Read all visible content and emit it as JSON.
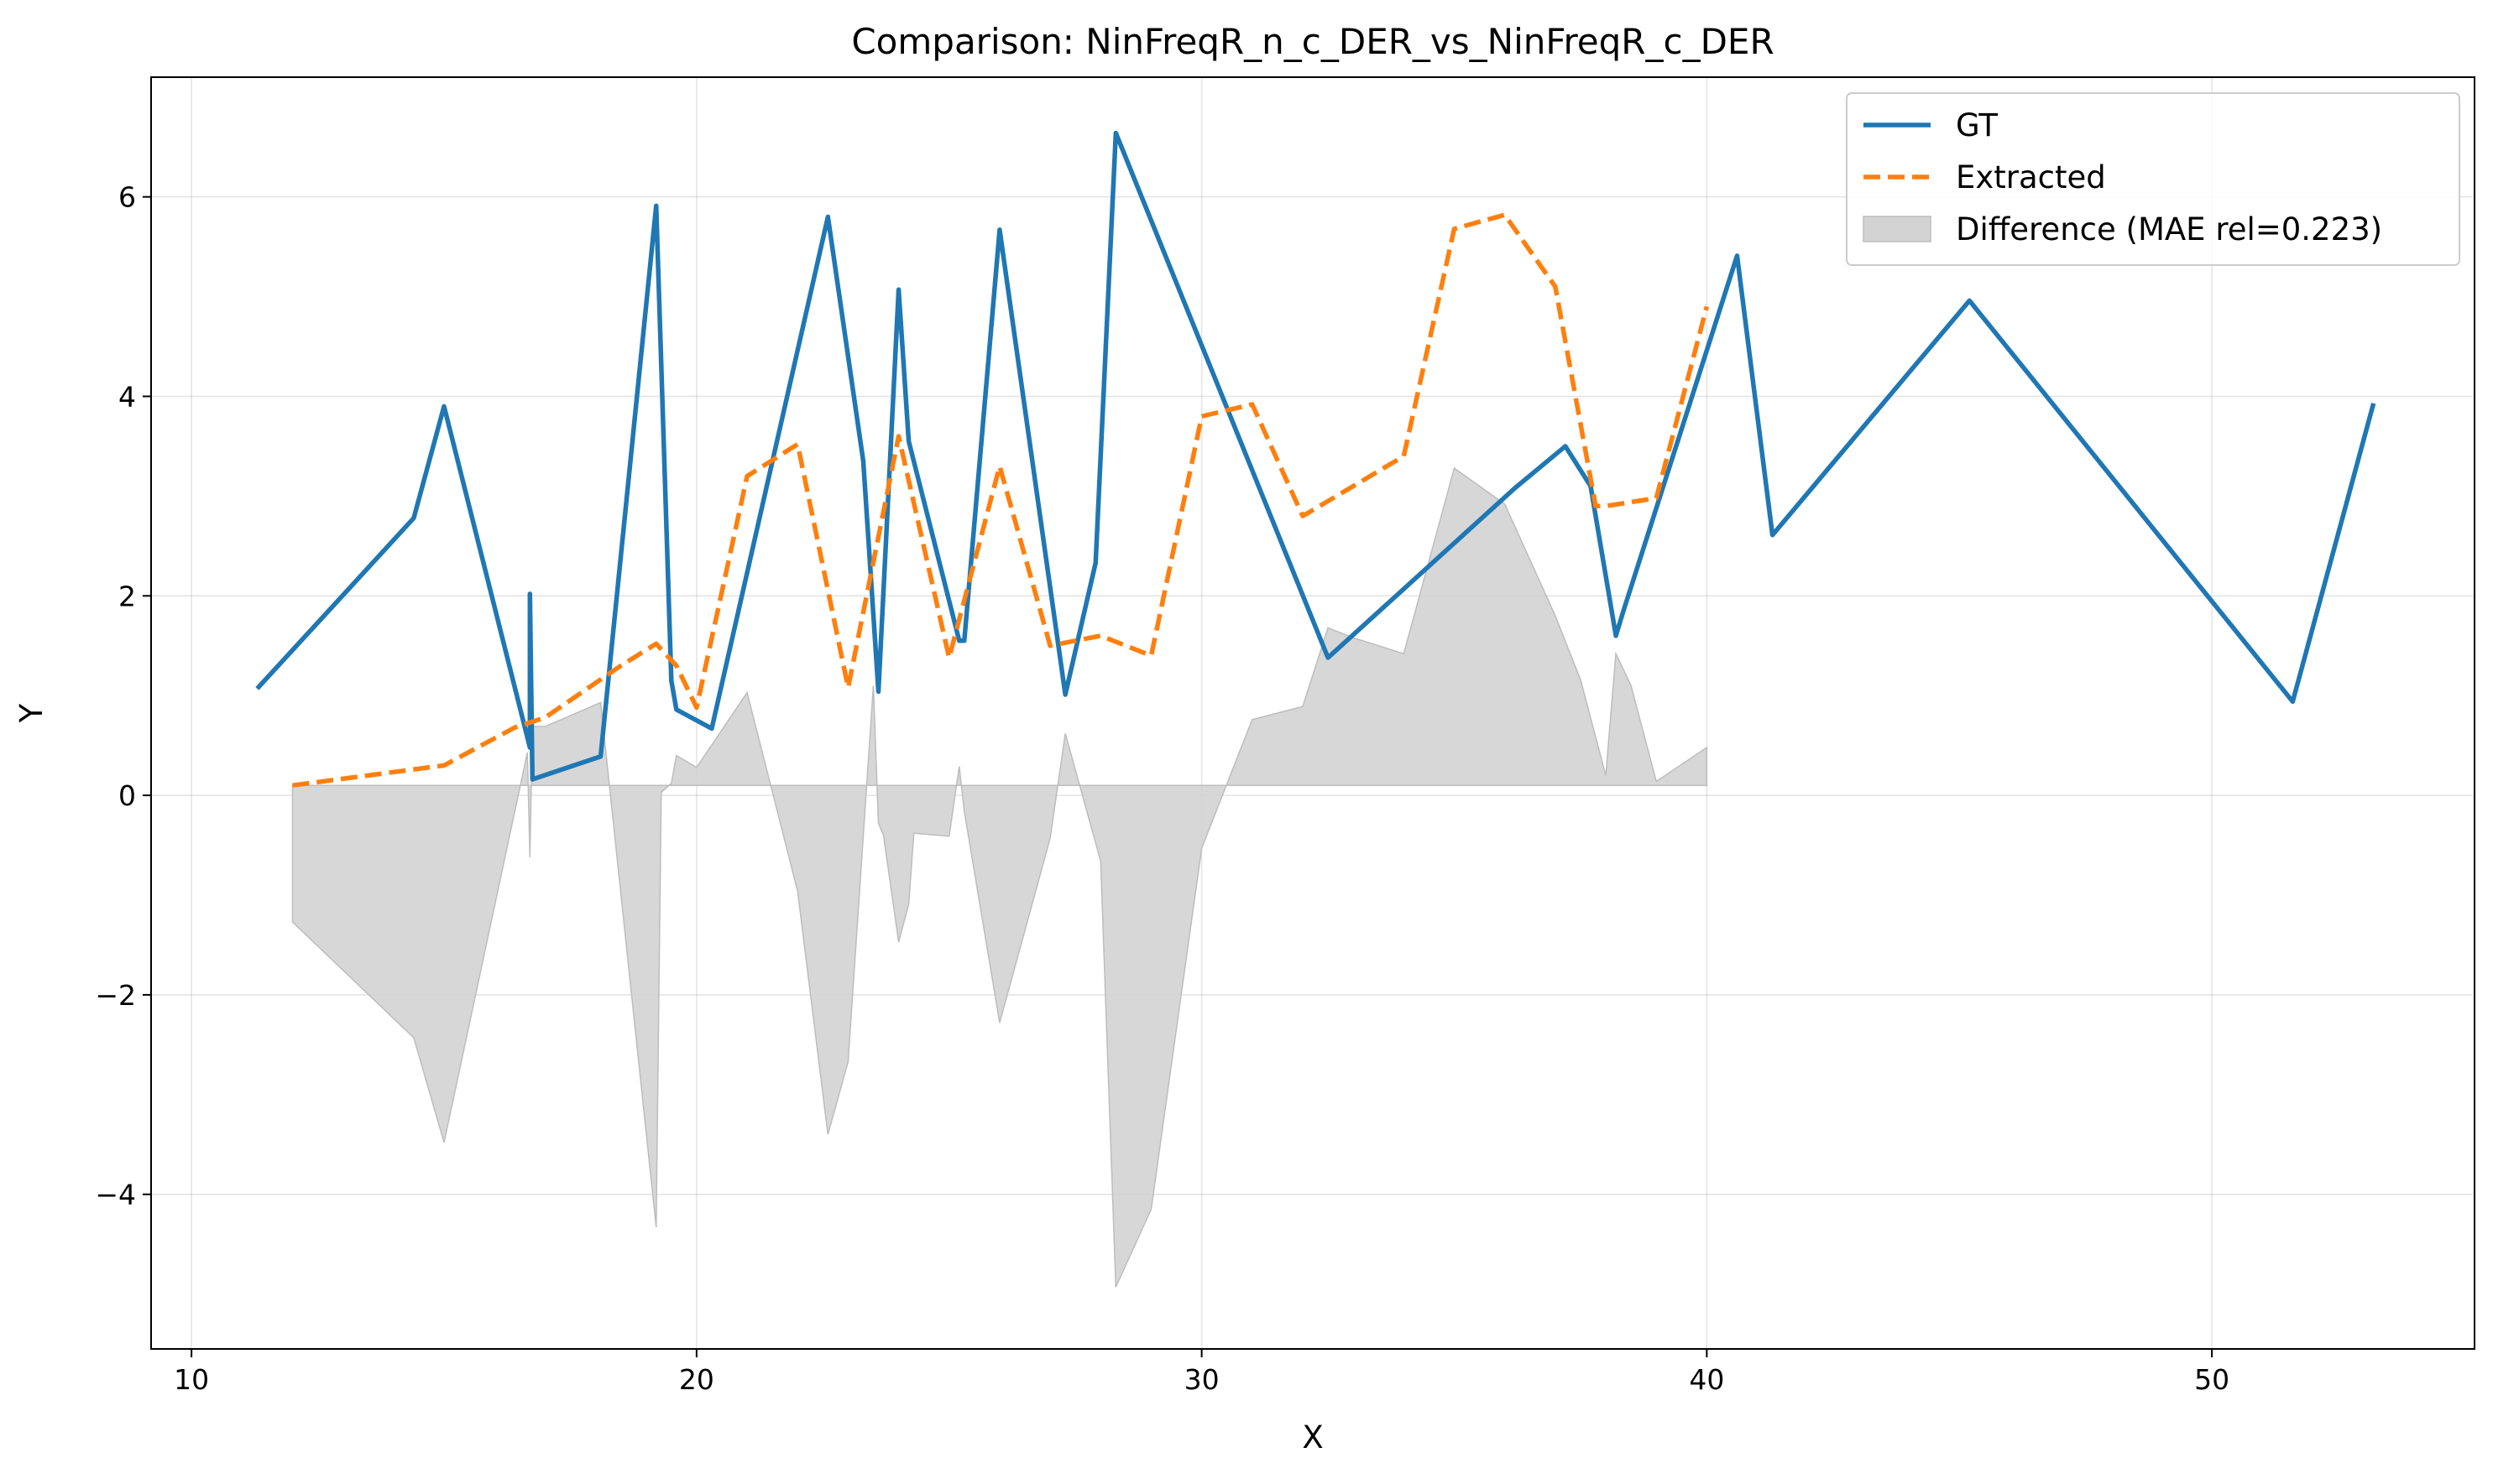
{
  "chart_data": {
    "type": "line",
    "title": "Comparison: NinFreqR_n_c_DER_vs_NinFreqR_c_DER",
    "xlabel": "X",
    "ylabel": "Y",
    "xlim": [
      9.2,
      55.2
    ],
    "ylim": [
      -5.55,
      7.2
    ],
    "xticks": [
      10,
      20,
      30,
      40,
      50
    ],
    "yticks": [
      -4,
      -2,
      0,
      2,
      4,
      6
    ],
    "grid": true,
    "legend_position": "top-right",
    "series": [
      {
        "name": "GT",
        "style": "solid",
        "color": "#1f77b4",
        "x": [
          11.3,
          14.4,
          15.0,
          16.7,
          16.7,
          16.75,
          18.1,
          19.2,
          19.5,
          19.6,
          20.3,
          22.6,
          23.3,
          23.6,
          24.0,
          24.2,
          25.2,
          25.3,
          26.0,
          27.3,
          27.9,
          28.3,
          32.5,
          36.2,
          37.2,
          37.7,
          38.2,
          38.35,
          40.6,
          41.3,
          45.2,
          51.6,
          53.2
        ],
        "y": [
          1.07,
          2.78,
          3.9,
          0.48,
          2.02,
          0.16,
          0.39,
          5.91,
          1.15,
          0.86,
          0.67,
          5.8,
          3.35,
          1.04,
          5.07,
          3.55,
          1.55,
          1.55,
          5.67,
          1.01,
          2.33,
          6.64,
          1.38,
          3.08,
          3.5,
          3.1,
          1.6,
          1.85,
          5.41,
          2.61,
          4.96,
          0.94,
          3.93
        ]
      },
      {
        "name": "Extracted",
        "style": "dashed",
        "color": "#ff7f0e",
        "x": [
          12.0,
          15.0,
          16.4,
          17.0,
          18.5,
          19.2,
          19.6,
          20.0,
          21.0,
          22.0,
          23.0,
          24.0,
          25.0,
          26.0,
          27.0,
          28.0,
          29.0,
          30.0,
          31.0,
          32.0,
          33.0,
          34.0,
          35.0,
          36.0,
          37.0,
          37.8,
          38.0,
          39.0,
          40.0
        ],
        "y": [
          0.1,
          0.3,
          0.68,
          0.78,
          1.3,
          1.52,
          1.3,
          0.88,
          3.2,
          3.52,
          1.08,
          3.6,
          1.38,
          3.3,
          1.5,
          1.6,
          1.4,
          3.8,
          3.92,
          2.8,
          3.1,
          3.4,
          5.68,
          5.82,
          5.1,
          2.9,
          2.9,
          2.98,
          4.9
        ]
      },
      {
        "name": "Difference (MAE rel=0.223)",
        "style": "filled",
        "color": "#d3d3d3",
        "baseline": 0.1,
        "x": [
          12.0,
          14.4,
          15.0,
          16.65,
          16.7,
          16.75,
          17.0,
          18.1,
          19.2,
          19.3,
          19.5,
          19.6,
          20.0,
          21.0,
          22.0,
          22.6,
          23.0,
          23.5,
          23.6,
          23.7,
          24.0,
          24.2,
          24.3,
          25.0,
          25.2,
          25.3,
          26.0,
          27.0,
          27.3,
          28.0,
          28.3,
          29.0,
          30.0,
          31.0,
          32.0,
          32.5,
          33.0,
          34.0,
          35.0,
          36.0,
          37.0,
          37.5,
          38.0,
          38.2,
          38.5,
          39.0,
          40.0
        ],
        "y": [
          -1.27,
          -2.43,
          -3.48,
          0.43,
          -0.62,
          0.69,
          0.69,
          0.93,
          -4.33,
          0.03,
          0.12,
          0.4,
          0.28,
          1.03,
          -0.96,
          -3.4,
          -2.67,
          1.1,
          -0.28,
          -0.4,
          -1.47,
          -1.09,
          -0.38,
          -0.41,
          0.29,
          -0.16,
          -2.28,
          -0.43,
          0.62,
          -0.66,
          -4.93,
          -4.15,
          -0.53,
          0.76,
          0.89,
          1.68,
          1.58,
          1.42,
          3.28,
          2.92,
          1.8,
          1.16,
          0.2,
          1.42,
          1.1,
          0.14,
          0.48
        ]
      }
    ]
  }
}
